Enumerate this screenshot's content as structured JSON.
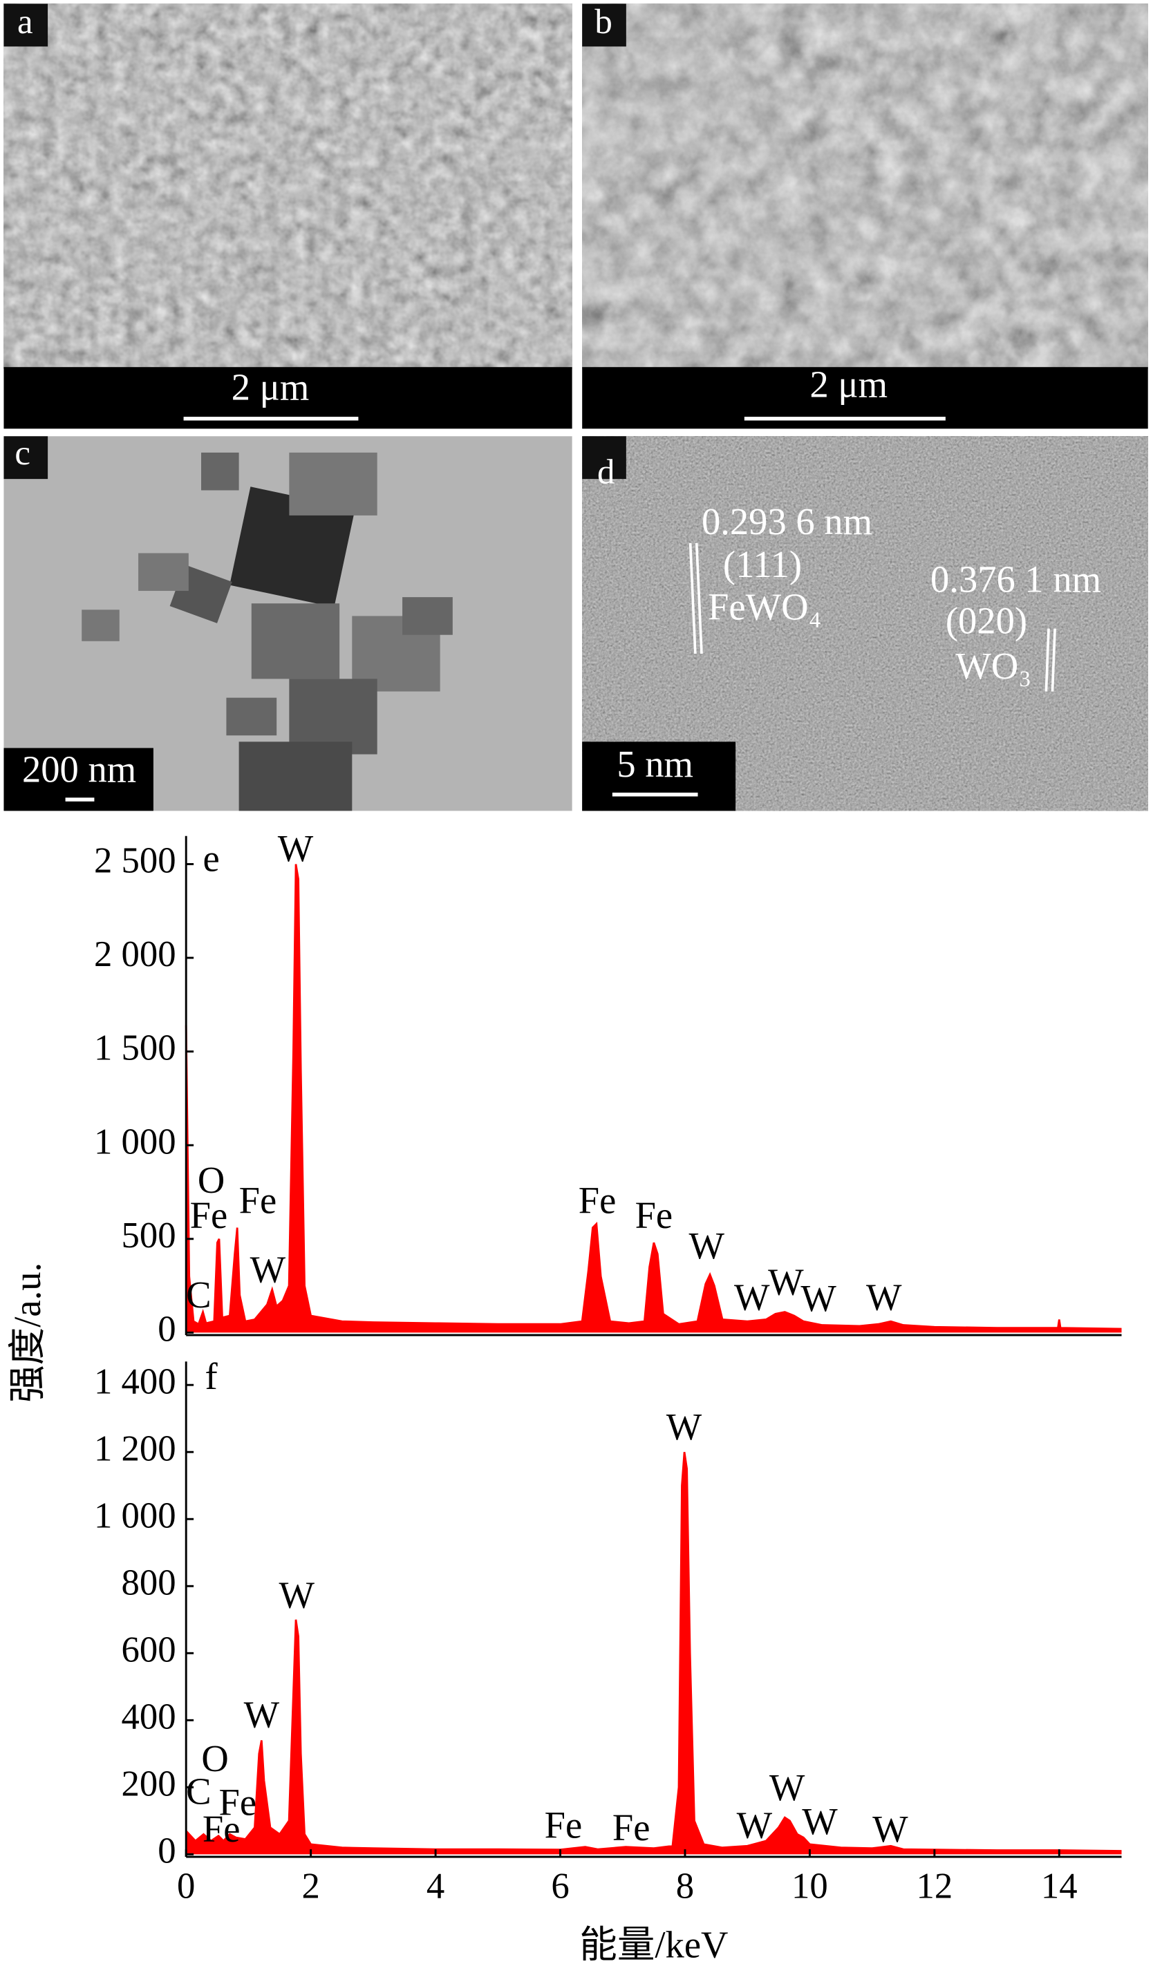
{
  "panels": [
    {
      "label": "a",
      "scale_bar": "2 μm"
    },
    {
      "label": "b",
      "scale_bar": "2 μm"
    },
    {
      "label": "c",
      "scale_bar": "200 nm"
    },
    {
      "label": "d",
      "scale_bar": "5 nm",
      "annotations": [
        "0.293 6 nm",
        "(111)",
        "FeWO₄",
        "0.376 1 nm",
        "(020)",
        "WO₃"
      ]
    }
  ],
  "chart_data": [
    {
      "type": "area",
      "label": "e",
      "ylabel": "强度/a.u.",
      "color": "#ff0000",
      "x": [
        0,
        0.05,
        0.12,
        0.2,
        0.27,
        0.32,
        0.45,
        0.5,
        0.53,
        0.58,
        0.7,
        0.78,
        0.82,
        0.86,
        0.95,
        1.1,
        1.3,
        1.38,
        1.45,
        1.55,
        1.65,
        1.72,
        1.76,
        1.8,
        1.84,
        1.9,
        2.0,
        2.5,
        3.0,
        4.0,
        5.0,
        6.0,
        6.35,
        6.45,
        6.52,
        6.58,
        6.65,
        6.8,
        7.1,
        7.35,
        7.43,
        7.5,
        7.56,
        7.65,
        7.9,
        8.2,
        8.33,
        8.4,
        8.47,
        8.6,
        9.0,
        9.3,
        9.45,
        9.6,
        9.75,
        9.9,
        10.2,
        10.8,
        11.1,
        11.3,
        11.5,
        12.0,
        13.0,
        13.98,
        14.0,
        14.02,
        15.0
      ],
      "values": [
        1640,
        300,
        60,
        45,
        110,
        50,
        60,
        480,
        500,
        80,
        90,
        420,
        560,
        200,
        60,
        70,
        150,
        230,
        140,
        170,
        250,
        1500,
        2500,
        2420,
        1400,
        250,
        90,
        60,
        55,
        50,
        45,
        45,
        60,
        330,
        560,
        580,
        300,
        60,
        50,
        60,
        350,
        480,
        420,
        100,
        45,
        60,
        260,
        310,
        250,
        70,
        60,
        70,
        100,
        110,
        90,
        60,
        40,
        35,
        45,
        60,
        40,
        30,
        25,
        25,
        70,
        25,
        20
      ],
      "peak_labels": [
        "W",
        "O",
        "Fe",
        "Fe",
        "W",
        "C",
        "Fe",
        "Fe",
        "W",
        "W",
        "W",
        "W",
        "W"
      ],
      "xlim": [
        0,
        15
      ],
      "ylim": [
        0,
        2650
      ],
      "yticks": [
        0,
        500,
        {
          "value": 1000,
          "label": "1 000"
        },
        {
          "value": 1500,
          "label": "1 500"
        },
        {
          "value": 2000,
          "label": "2 000"
        },
        {
          "value": 2500,
          "label": "2 500"
        }
      ]
    },
    {
      "type": "area",
      "label": "f",
      "xlabel": "能量/keV",
      "color": "#ff0000",
      "x": [
        0,
        0.05,
        0.15,
        0.28,
        0.4,
        0.52,
        0.6,
        0.7,
        0.8,
        0.95,
        1.1,
        1.17,
        1.21,
        1.25,
        1.35,
        1.5,
        1.65,
        1.72,
        1.76,
        1.8,
        1.84,
        1.9,
        2.0,
        2.5,
        3,
        4,
        5,
        6,
        6.4,
        6.6,
        7.05,
        7.5,
        7.8,
        7.9,
        7.95,
        7.99,
        8.03,
        8.08,
        8.15,
        8.3,
        8.6,
        9.0,
        9.3,
        9.5,
        9.6,
        9.68,
        9.8,
        9.9,
        10.0,
        10.5,
        11.0,
        11.3,
        11.5,
        12,
        13,
        14,
        15
      ],
      "values": [
        70,
        60,
        40,
        60,
        40,
        55,
        40,
        60,
        50,
        45,
        80,
        300,
        340,
        220,
        80,
        60,
        100,
        480,
        700,
        650,
        300,
        60,
        30,
        20,
        18,
        15,
        15,
        14,
        22,
        15,
        22,
        18,
        25,
        200,
        1100,
        1200,
        1150,
        600,
        100,
        30,
        20,
        25,
        40,
        80,
        110,
        100,
        60,
        50,
        30,
        20,
        18,
        25,
        15,
        14,
        12,
        12,
        10
      ],
      "peak_labels": [
        "W",
        "W",
        "O",
        "C",
        "Fe",
        "Fe",
        "Fe",
        "Fe",
        "W",
        "W",
        "W",
        "W",
        "W"
      ],
      "xlim": [
        0,
        15
      ],
      "xticks": [
        0,
        2,
        4,
        6,
        8,
        10,
        12,
        14
      ],
      "ylim": [
        0,
        1470
      ],
      "yticks": [
        0,
        200,
        400,
        600,
        800,
        {
          "value": 1000,
          "label": "1 000"
        },
        {
          "value": 1200,
          "label": "1 200"
        },
        {
          "value": 1400,
          "label": "1 400"
        }
      ]
    }
  ]
}
